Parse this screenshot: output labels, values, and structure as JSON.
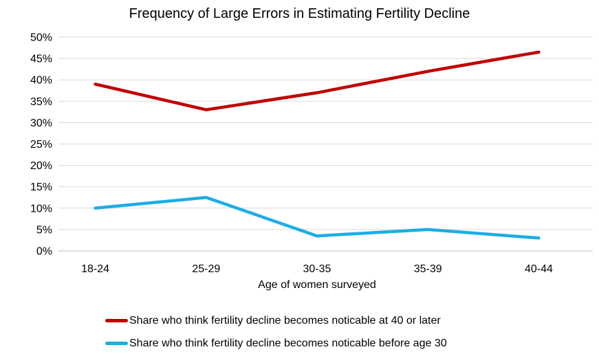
{
  "chart_data": {
    "type": "line",
    "title": "Frequency of Large Errors in Estimating Fertility Decline",
    "xlabel": "Age of women surveyed",
    "ylabel": "",
    "categories": [
      "18-24",
      "25-29",
      "30-35",
      "35-39",
      "40-44"
    ],
    "series": [
      {
        "name": "Share who think fertility decline becomes noticable at 40 or later",
        "color": "#C00000",
        "values": [
          39,
          33,
          37,
          42,
          46.5
        ]
      },
      {
        "name": "Share who think fertility decline becomes noticable before age 30",
        "color": "#1CADE4",
        "values": [
          10,
          12.5,
          3.5,
          5,
          3
        ]
      }
    ],
    "ylim": [
      0,
      50
    ],
    "ytick_step": 5,
    "ytick_labels": [
      "0%",
      "5%",
      "10%",
      "15%",
      "20%",
      "25%",
      "30%",
      "35%",
      "40%",
      "45%",
      "50%"
    ],
    "grid": true,
    "gridline_color": "#D9D9D9",
    "axisline_color": "#BFBFBF",
    "text_color": "#000000",
    "background": "#FFFFFF",
    "legend_position": "bottom-left"
  }
}
